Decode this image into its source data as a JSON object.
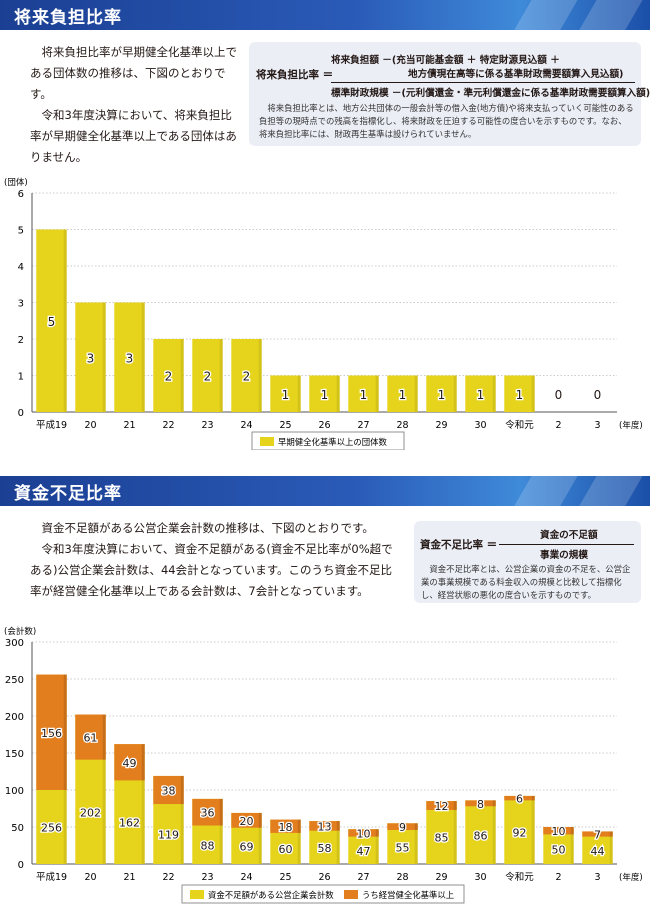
{
  "section1": {
    "title": "将来負担比率",
    "para1": "将来負担比率が早期健全化基準以上である団体数の推移は、下図のとおりです。",
    "para2": "令和3年度決算において、将来負担比率が早期健全化基準以上である団体はありません。",
    "formula": {
      "label": "将来負担比率 ＝",
      "num1": "将来負担額 －(充当可能基金額 ＋ 特定財源見込額 ＋",
      "num2": "地方債現在高等に係る基準財政需要額算入見込額)",
      "den": "標準財政規模 －(元利償還金・準元利償還金に係る基準財政需要額算入額)",
      "note": "将来負担比率とは、地方公共団体の一般会計等の借入金(地方債)や将来支払っていく可能性のある負担等の現時点での残高を指標化し、将来財政を圧迫する可能性の度合いを示すものです。なお、将来負担比率には、財政再生基準は設けられていません。"
    }
  },
  "section2": {
    "title": "資金不足比率",
    "para1": "資金不足額がある公営企業会計数の推移は、下図のとおりです。",
    "para2": "令和3年度決算において、資金不足額がある(資金不足比率が0%超である)公営企業会計数は、44会計となっています。このうち資金不足比率が経営健全化基準以上である会計数は、7会計となっています。",
    "formula": {
      "label": "資金不足比率 ＝",
      "num": "資金の不足額",
      "den": "事業の規模",
      "note": "資金不足比率とは、公営企業の資金の不足を、公営企業の事業規模である料金収入の規模と比較して指標化し、経営状態の悪化の度合いを示すものです。"
    }
  },
  "chart_data": [
    {
      "type": "bar",
      "ylabel": "(団体)",
      "xlabel": "(年度)",
      "ylim": [
        0,
        6
      ],
      "yticks": [
        0,
        1,
        2,
        3,
        4,
        5,
        6
      ],
      "categories": [
        "平成19",
        "20",
        "21",
        "22",
        "23",
        "24",
        "25",
        "26",
        "27",
        "28",
        "29",
        "30",
        "令和元",
        "2",
        "3"
      ],
      "series": [
        {
          "name": "早期健全化基準以上の団体数",
          "color": "#e5d31c",
          "values": [
            5,
            3,
            3,
            2,
            2,
            2,
            1,
            1,
            1,
            1,
            1,
            1,
            1,
            0,
            0
          ]
        }
      ],
      "legend": "bottom"
    },
    {
      "type": "bar",
      "ylabel": "(会計数)",
      "xlabel": "(年度)",
      "ylim": [
        0,
        300
      ],
      "yticks": [
        0,
        50,
        100,
        150,
        200,
        250,
        300
      ],
      "categories": [
        "平成19",
        "20",
        "21",
        "22",
        "23",
        "24",
        "25",
        "26",
        "27",
        "28",
        "29",
        "30",
        "令和元",
        "2",
        "3"
      ],
      "series": [
        {
          "name": "資金不足額がある公営企業会計数",
          "color": "#e5d31c",
          "values": [
            256,
            202,
            162,
            119,
            88,
            69,
            60,
            58,
            47,
            55,
            85,
            86,
            92,
            50,
            44
          ]
        },
        {
          "name": "うち経営健全化基準以上",
          "color": "#e37e1e",
          "values": [
            156,
            61,
            49,
            38,
            36,
            20,
            18,
            13,
            10,
            9,
            12,
            8,
            6,
            10,
            7
          ]
        }
      ],
      "legend": "bottom"
    }
  ]
}
